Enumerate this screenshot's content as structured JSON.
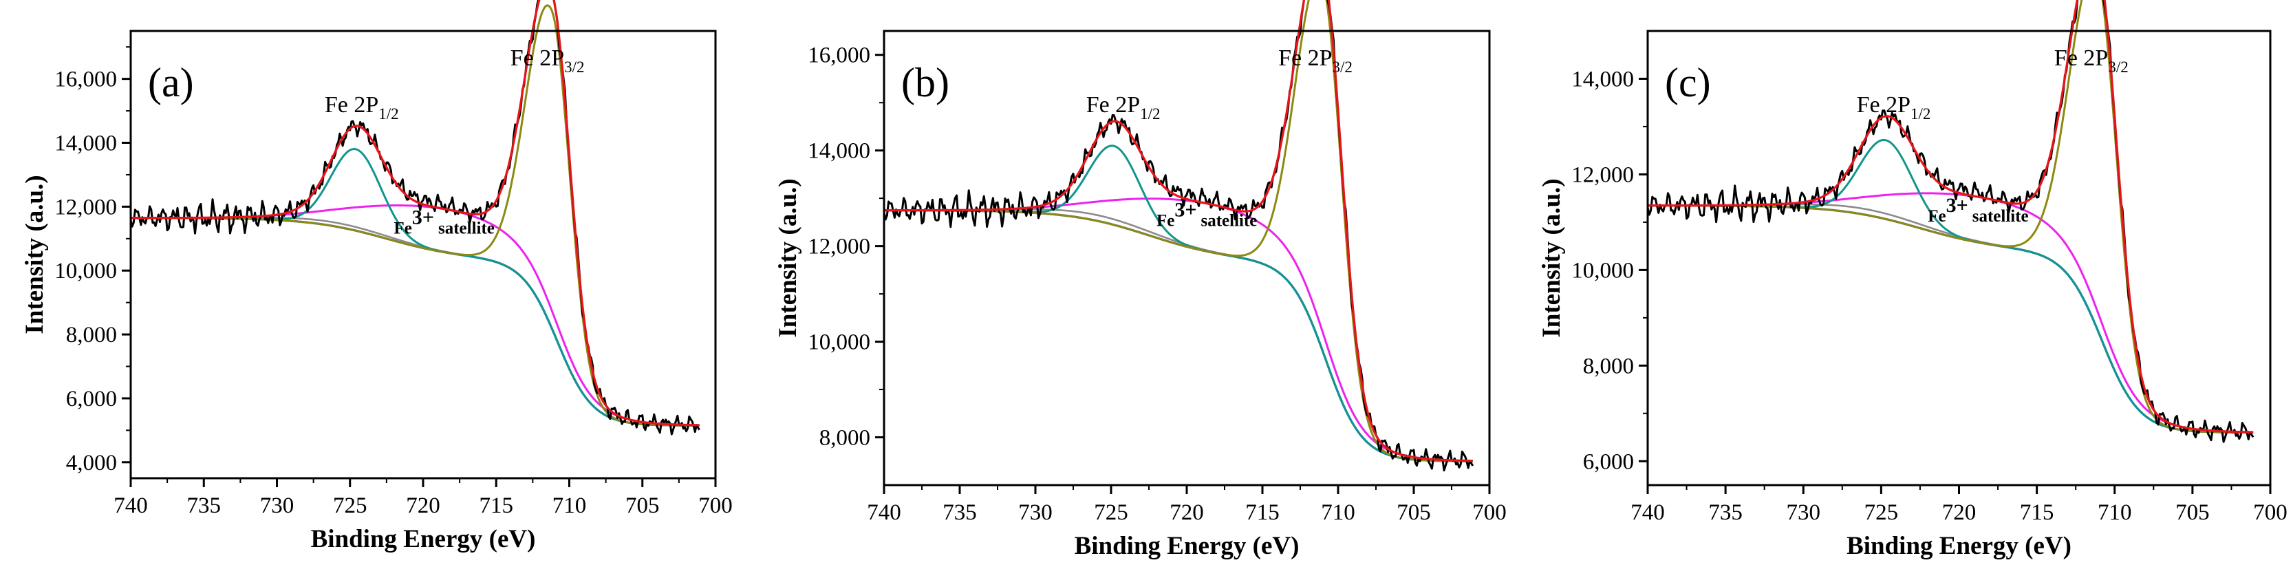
{
  "chart_data": [
    {
      "type": "line",
      "panel_label": "(a)",
      "xlabel": "Binding Energy (eV)",
      "ylabel": "Intensity (a.u.)",
      "xlim": [
        740,
        700
      ],
      "ylim": [
        3500,
        17500
      ],
      "x_ticks": [
        740,
        735,
        730,
        725,
        720,
        715,
        710,
        705,
        700
      ],
      "x_tick_labels": [
        "740",
        "735",
        "730",
        "725",
        "720",
        "715",
        "710",
        "705",
        "700"
      ],
      "y_ticks": [
        4000,
        6000,
        8000,
        10000,
        12000,
        14000,
        16000
      ],
      "y_tick_labels": [
        "4,000",
        "6,000",
        "8,000",
        "10,000",
        "12,000",
        "14,000",
        "16,000"
      ],
      "annotations": {
        "p32_main": "Fe 2P",
        "p32_sub": "3/2",
        "p12_main": "Fe 2P",
        "p12_sub": "1/2",
        "sat_main": "Fe",
        "sat_sup": "3+",
        "sat_tail": "satellite"
      },
      "params": {
        "bgL": 11650,
        "bgR": 5150,
        "p32pos": 711.2,
        "p32h": 9950,
        "p12pos": 724.6,
        "p12h": 2550,
        "sat": 1350,
        "noise": 350
      },
      "series": [
        {
          "name": "Raw data",
          "color": "#000000"
        },
        {
          "name": "Envelope fit",
          "color": "#e8141b"
        },
        {
          "name": "Fe 2P3/2 component",
          "color": "#8c8a12"
        },
        {
          "name": "Fe 2P1/2 component",
          "color": "#11968e"
        },
        {
          "name": "Satellite component",
          "color": "#ee22ee"
        },
        {
          "name": "Background",
          "color": "#1f3cd4"
        },
        {
          "name": "Baseline",
          "color": "#8c8c8c"
        }
      ]
    },
    {
      "type": "line",
      "panel_label": "(b)",
      "xlabel": "Binding Energy (eV)",
      "ylabel": "Intensity (a.u.)",
      "xlim": [
        740,
        700
      ],
      "ylim": [
        7000,
        16500
      ],
      "x_ticks": [
        740,
        735,
        730,
        725,
        720,
        715,
        710,
        705,
        700
      ],
      "x_tick_labels": [
        "740",
        "735",
        "730",
        "725",
        "720",
        "715",
        "710",
        "705",
        "700"
      ],
      "y_ticks": [
        8000,
        10000,
        12000,
        14000,
        16000
      ],
      "y_tick_labels": [
        "8,000",
        "10,000",
        "12,000",
        "14,000",
        "16,000"
      ],
      "annotations": {
        "p32_main": "Fe 2P",
        "p32_sub": "3/2",
        "p12_main": "Fe 2P",
        "p12_sub": "1/2",
        "sat_main": "Fe",
        "sat_sup": "3+",
        "sat_tail": "satellite"
      },
      "params": {
        "bgL": 12750,
        "bgR": 7500,
        "p32pos": 711.0,
        "p32h": 7700,
        "p12pos": 724.8,
        "p12h": 1650,
        "sat": 1000,
        "noise": 250
      },
      "series": [
        {
          "name": "Raw data",
          "color": "#000000"
        },
        {
          "name": "Envelope fit",
          "color": "#e8141b"
        },
        {
          "name": "Fe 2P3/2 component",
          "color": "#8c8a12"
        },
        {
          "name": "Fe 2P1/2 component",
          "color": "#11968e"
        },
        {
          "name": "Satellite component",
          "color": "#ee22ee"
        },
        {
          "name": "Background",
          "color": "#1f3cd4"
        },
        {
          "name": "Baseline",
          "color": "#8c8c8c"
        }
      ]
    },
    {
      "type": "line",
      "panel_label": "(c)",
      "xlabel": "Binding Energy (eV)",
      "ylabel": "Intensity (a.u.)",
      "xlim": [
        740,
        700
      ],
      "ylim": [
        5500,
        15000
      ],
      "x_ticks": [
        740,
        735,
        730,
        725,
        720,
        715,
        710,
        705,
        700
      ],
      "x_tick_labels": [
        "740",
        "735",
        "730",
        "725",
        "720",
        "715",
        "710",
        "705",
        "700"
      ],
      "y_ticks": [
        6000,
        8000,
        10000,
        12000,
        14000
      ],
      "y_tick_labels": [
        "6,000",
        "8,000",
        "10,000",
        "12,000",
        "14,000"
      ],
      "annotations": {
        "p32_main": "Fe 2P",
        "p32_sub": "3/2",
        "p12_main": "Fe 2P",
        "p12_sub": "1/2",
        "sat_main": "Fe",
        "sat_sup": "3+",
        "sat_tail": "satellite"
      },
      "params": {
        "bgL": 11350,
        "bgR": 6600,
        "p32pos": 711.1,
        "p32h": 7400,
        "p12pos": 724.7,
        "p12h": 1650,
        "sat": 950,
        "noise": 250
      },
      "series": [
        {
          "name": "Raw data",
          "color": "#000000"
        },
        {
          "name": "Envelope fit",
          "color": "#e8141b"
        },
        {
          "name": "Fe 2P3/2 component",
          "color": "#8c8a12"
        },
        {
          "name": "Fe 2P1/2 component",
          "color": "#11968e"
        },
        {
          "name": "Satellite component",
          "color": "#ee22ee"
        },
        {
          "name": "Background",
          "color": "#1f3cd4"
        },
        {
          "name": "Baseline",
          "color": "#8c8c8c"
        }
      ]
    }
  ]
}
